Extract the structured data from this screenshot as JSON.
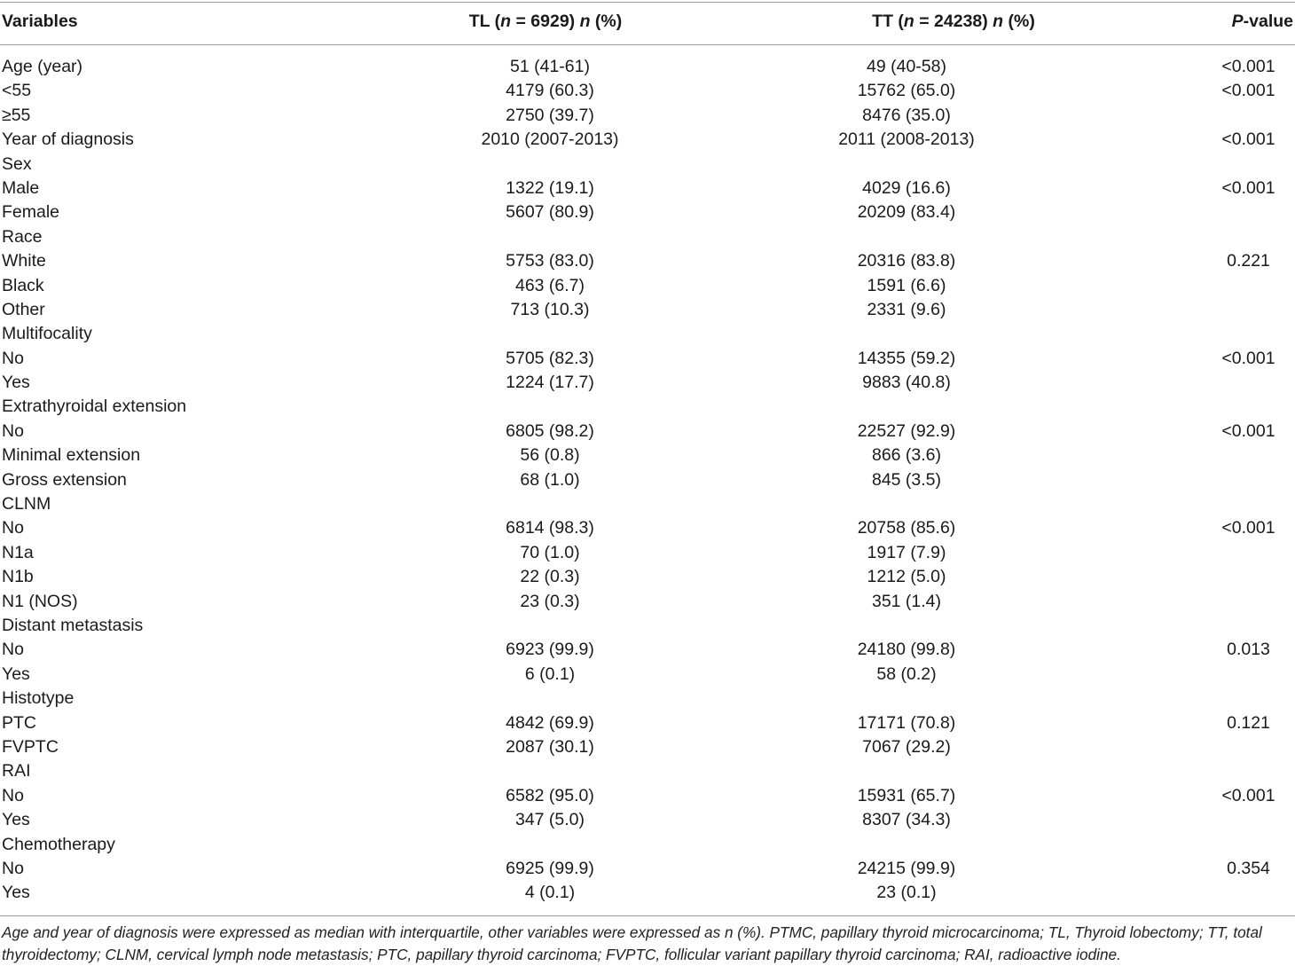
{
  "header": {
    "variables": "Variables",
    "tl_prefix": "TL (",
    "tl_n": "n",
    "tl_mid": " = 6929) ",
    "tl_n2": "n",
    "tl_suffix": " (%)",
    "tt_prefix": "TT (",
    "tt_n": "n",
    "tt_mid": " = 24238) ",
    "tt_n2": "n",
    "tt_suffix": " (%)",
    "p_italic": "P",
    "p_suffix": "-value"
  },
  "rows": [
    {
      "var": "Age (year)",
      "tl": "51 (41-61)",
      "tt": "49 (40-58)",
      "p": "<0.001"
    },
    {
      "var": "<55",
      "tl": "4179 (60.3)",
      "tt": "15762 (65.0)",
      "p": "<0.001"
    },
    {
      "var": "≥55",
      "tl": "2750 (39.7)",
      "tt": "8476 (35.0)",
      "p": ""
    },
    {
      "var": "Year of diagnosis",
      "tl": "2010 (2007-2013)",
      "tt": "2011 (2008-2013)",
      "p": "<0.001"
    },
    {
      "var": "Sex",
      "tl": "",
      "tt": "",
      "p": ""
    },
    {
      "var": "Male",
      "tl": "1322 (19.1)",
      "tt": "4029 (16.6)",
      "p": "<0.001"
    },
    {
      "var": "Female",
      "tl": "5607 (80.9)",
      "tt": "20209 (83.4)",
      "p": ""
    },
    {
      "var": "Race",
      "tl": "",
      "tt": "",
      "p": ""
    },
    {
      "var": "White",
      "tl": "5753 (83.0)",
      "tt": "20316 (83.8)",
      "p": "0.221"
    },
    {
      "var": "Black",
      "tl": "463 (6.7)",
      "tt": "1591 (6.6)",
      "p": ""
    },
    {
      "var": "Other",
      "tl": "713 (10.3)",
      "tt": "2331 (9.6)",
      "p": ""
    },
    {
      "var": "Multifocality",
      "tl": "",
      "tt": "",
      "p": ""
    },
    {
      "var": "No",
      "tl": "5705 (82.3)",
      "tt": "14355 (59.2)",
      "p": "<0.001"
    },
    {
      "var": "Yes",
      "tl": "1224 (17.7)",
      "tt": "9883 (40.8)",
      "p": ""
    },
    {
      "var": "Extrathyroidal extension",
      "tl": "",
      "tt": "",
      "p": ""
    },
    {
      "var": "No",
      "tl": "6805 (98.2)",
      "tt": "22527 (92.9)",
      "p": "<0.001"
    },
    {
      "var": "Minimal extension",
      "tl": "56 (0.8)",
      "tt": "866 (3.6)",
      "p": ""
    },
    {
      "var": "Gross extension",
      "tl": "68 (1.0)",
      "tt": "845 (3.5)",
      "p": ""
    },
    {
      "var": "CLNM",
      "tl": "",
      "tt": "",
      "p": ""
    },
    {
      "var": "No",
      "tl": "6814 (98.3)",
      "tt": "20758 (85.6)",
      "p": "<0.001"
    },
    {
      "var": "N1a",
      "tl": "70 (1.0)",
      "tt": "1917 (7.9)",
      "p": ""
    },
    {
      "var": "N1b",
      "tl": "22 (0.3)",
      "tt": "1212 (5.0)",
      "p": ""
    },
    {
      "var": "N1 (NOS)",
      "tl": "23 (0.3)",
      "tt": "351 (1.4)",
      "p": ""
    },
    {
      "var": "Distant metastasis",
      "tl": "",
      "tt": "",
      "p": ""
    },
    {
      "var": "No",
      "tl": "6923 (99.9)",
      "tt": "24180 (99.8)",
      "p": "0.013"
    },
    {
      "var": "Yes",
      "tl": "6 (0.1)",
      "tt": "58 (0.2)",
      "p": ""
    },
    {
      "var": "Histotype",
      "tl": "",
      "tt": "",
      "p": ""
    },
    {
      "var": "PTC",
      "tl": "4842 (69.9)",
      "tt": "17171 (70.8)",
      "p": "0.121"
    },
    {
      "var": "FVPTC",
      "tl": "2087 (30.1)",
      "tt": "7067 (29.2)",
      "p": ""
    },
    {
      "var": "RAI",
      "tl": "",
      "tt": "",
      "p": ""
    },
    {
      "var": "No",
      "tl": "6582 (95.0)",
      "tt": "15931 (65.7)",
      "p": "<0.001"
    },
    {
      "var": "Yes",
      "tl": "347 (5.0)",
      "tt": "8307 (34.3)",
      "p": ""
    },
    {
      "var": "Chemotherapy",
      "tl": "",
      "tt": "",
      "p": ""
    },
    {
      "var": "No",
      "tl": "6925 (99.9)",
      "tt": "24215 (99.9)",
      "p": "0.354"
    },
    {
      "var": "Yes",
      "tl": "4 (0.1)",
      "tt": "23 (0.1)",
      "p": ""
    }
  ],
  "footnote": "Age and year of diagnosis were expressed as median with interquartile, other variables were expressed as n (%). PTMC, papillary thyroid microcarcinoma; TL, Thyroid lobectomy; TT, total thyroidectomy; CLNM, cervical lymph node metastasis; PTC, papillary thyroid carcinoma; FVPTC, follicular variant papillary thyroid carcinoma; RAI, radioactive iodine."
}
